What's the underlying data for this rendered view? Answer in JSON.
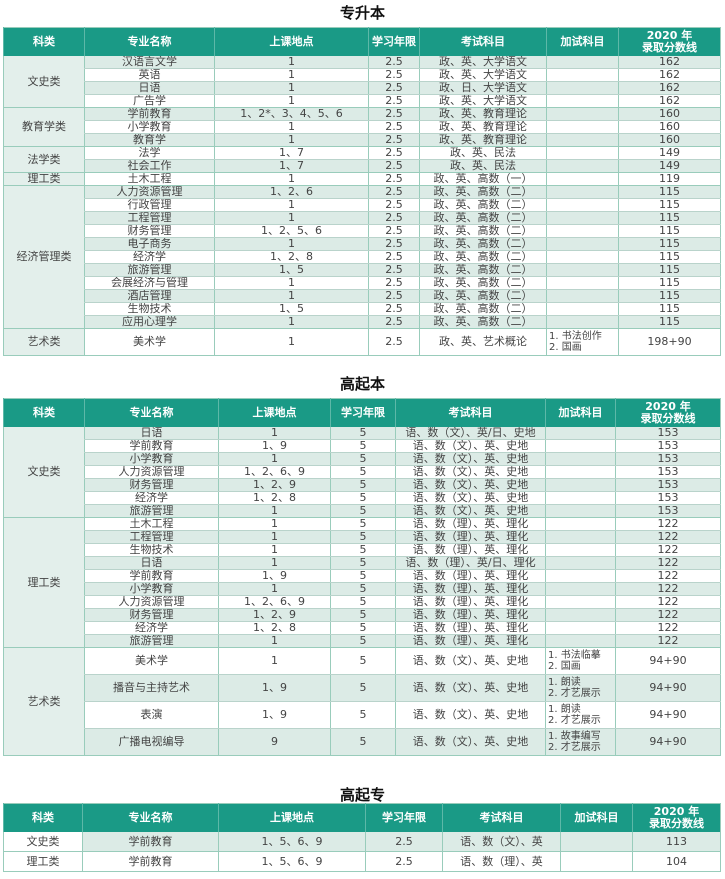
{
  "headers": [
    "科类",
    "专业名称",
    "上课地点",
    "学习年限",
    "考试科目",
    "加试科目",
    "2020 年\n录取分数线"
  ],
  "colors": {
    "header_bg": "#1a9a86",
    "stripe": "#dcebe6",
    "border": "#99ccbb"
  },
  "tables": [
    {
      "title": "专升本",
      "groups": [
        {
          "category": "文史类",
          "rows": [
            [
              "汉语言文学",
              "1",
              "2.5",
              "政、英、大学语文",
              "",
              "162"
            ],
            [
              "英语",
              "1",
              "2.5",
              "政、英、大学语文",
              "",
              "162"
            ],
            [
              "日语",
              "1",
              "2.5",
              "政、日、大学语文",
              "",
              "162"
            ],
            [
              "广告学",
              "1",
              "2.5",
              "政、英、大学语文",
              "",
              "162"
            ]
          ]
        },
        {
          "category": "教育学类",
          "rows": [
            [
              "学前教育",
              "1、2*、3、4、5、6",
              "2.5",
              "政、英、教育理论",
              "",
              "160"
            ],
            [
              "小学教育",
              "1",
              "2.5",
              "政、英、教育理论",
              "",
              "160"
            ],
            [
              "教育学",
              "1",
              "2.5",
              "政、英、教育理论",
              "",
              "160"
            ]
          ]
        },
        {
          "category": "法学类",
          "rows": [
            [
              "法学",
              "1、7",
              "2.5",
              "政、英、民法",
              "",
              "149"
            ],
            [
              "社会工作",
              "1、7",
              "2.5",
              "政、英、民法",
              "",
              "149"
            ]
          ]
        },
        {
          "category": "理工类",
          "rows": [
            [
              "土木工程",
              "1",
              "2.5",
              "政、英、高数（一）",
              "",
              "119"
            ]
          ]
        },
        {
          "category": "经济管理类",
          "rows": [
            [
              "人力资源管理",
              "1、2、6",
              "2.5",
              "政、英、高数（二）",
              "",
              "115"
            ],
            [
              "行政管理",
              "1",
              "2.5",
              "政、英、高数（二）",
              "",
              "115"
            ],
            [
              "工程管理",
              "1",
              "2.5",
              "政、英、高数（二）",
              "",
              "115"
            ],
            [
              "财务管理",
              "1、2、5、6",
              "2.5",
              "政、英、高数（二）",
              "",
              "115"
            ],
            [
              "电子商务",
              "1",
              "2.5",
              "政、英、高数（二）",
              "",
              "115"
            ],
            [
              "经济学",
              "1、2、8",
              "2.5",
              "政、英、高数（二）",
              "",
              "115"
            ],
            [
              "旅游管理",
              "1、5",
              "2.5",
              "政、英、高数（二）",
              "",
              "115"
            ],
            [
              "会展经济与管理",
              "1",
              "2.5",
              "政、英、高数（二）",
              "",
              "115"
            ],
            [
              "酒店管理",
              "1",
              "2.5",
              "政、英、高数（二）",
              "",
              "115"
            ],
            [
              "生物技术",
              "1、5",
              "2.5",
              "政、英、高数（二）",
              "",
              "115"
            ],
            [
              "应用心理学",
              "1",
              "2.5",
              "政、英、高数（二）",
              "",
              "115"
            ]
          ]
        },
        {
          "category": "艺术类",
          "tall": true,
          "rows": [
            [
              "美术学",
              "1",
              "2.5",
              "政、英、艺术概论",
              "1. 书法创作\n2. 国画",
              "198+90"
            ]
          ]
        }
      ]
    },
    {
      "title": "高起本",
      "groups": [
        {
          "category": "文史类",
          "rows": [
            [
              "日语",
              "1",
              "5",
              "语、数（文）、英/日、史地",
              "",
              "153"
            ],
            [
              "学前教育",
              "1、9",
              "5",
              "语、数（文）、英、史地",
              "",
              "153"
            ],
            [
              "小学教育",
              "1",
              "5",
              "语、数（文）、英、史地",
              "",
              "153"
            ],
            [
              "人力资源管理",
              "1、2、6、9",
              "5",
              "语、数（文）、英、史地",
              "",
              "153"
            ],
            [
              "财务管理",
              "1、2、9",
              "5",
              "语、数（文）、英、史地",
              "",
              "153"
            ],
            [
              "经济学",
              "1、2、8",
              "5",
              "语、数（文）、英、史地",
              "",
              "153"
            ],
            [
              "旅游管理",
              "1",
              "5",
              "语、数（文）、英、史地",
              "",
              "153"
            ]
          ]
        },
        {
          "category": "理工类",
          "rows": [
            [
              "土木工程",
              "1",
              "5",
              "语、数（理）、英、理化",
              "",
              "122"
            ],
            [
              "工程管理",
              "1",
              "5",
              "语、数（理）、英、理化",
              "",
              "122"
            ],
            [
              "生物技术",
              "1",
              "5",
              "语、数（理）、英、理化",
              "",
              "122"
            ],
            [
              "日语",
              "1",
              "5",
              "语、数（理）、英/日、理化",
              "",
              "122"
            ],
            [
              "学前教育",
              "1、9",
              "5",
              "语、数（理）、英、理化",
              "",
              "122"
            ],
            [
              "小学教育",
              "1",
              "5",
              "语、数（理）、英、理化",
              "",
              "122"
            ],
            [
              "人力资源管理",
              "1、2、6、9",
              "5",
              "语、数（理）、英、理化",
              "",
              "122"
            ],
            [
              "财务管理",
              "1、2、9",
              "5",
              "语、数（理）、英、理化",
              "",
              "122"
            ],
            [
              "经济学",
              "1、2、8",
              "5",
              "语、数（理）、英、理化",
              "",
              "122"
            ],
            [
              "旅游管理",
              "1",
              "5",
              "语、数（理）、英、理化",
              "",
              "122"
            ]
          ]
        },
        {
          "category": "艺术类",
          "tall": true,
          "rows": [
            [
              "美术学",
              "1",
              "5",
              "语、数（文）、英、史地",
              "1. 书法临摹\n2. 国画",
              "94+90"
            ],
            [
              "播音与主持艺术",
              "1、9",
              "5",
              "语、数（文）、英、史地",
              "1. 朗读\n2. 才艺展示",
              "94+90"
            ],
            [
              "表演",
              "1、9",
              "5",
              "语、数（文）、英、史地",
              "1. 朗读\n2. 才艺展示",
              "94+90"
            ],
            [
              "广播电视编导",
              "9",
              "5",
              "语、数（文）、英、史地",
              "1. 故事编写\n2. 才艺展示",
              "94+90"
            ]
          ]
        }
      ]
    },
    {
      "title": "高起专",
      "groups": [
        {
          "category": "文史类",
          "mid": true,
          "rows": [
            [
              "学前教育",
              "1、5、6、9",
              "2.5",
              "语、数（文）、英",
              "",
              "113"
            ]
          ]
        },
        {
          "category": "理工类",
          "mid": true,
          "rows": [
            [
              "学前教育",
              "1、5、6、9",
              "2.5",
              "语、数（理）、英",
              "",
              "104"
            ]
          ]
        }
      ]
    }
  ]
}
